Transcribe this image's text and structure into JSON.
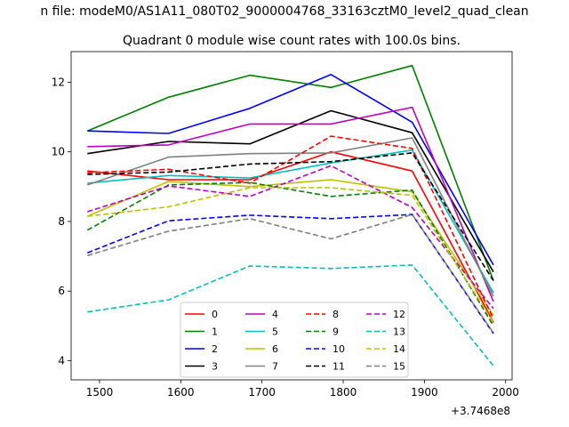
{
  "chart_data": {
    "type": "line",
    "suptitle": "n file: modeM0/AS1A11_080T02_9000004768_33163cztM0_level2_quad_clean",
    "title": "Quadrant 0 module wise count rates with 100.0s bins.",
    "xlabel": "",
    "ylabel": "",
    "x": [
      1485,
      1585,
      1685,
      1785,
      1885,
      1985
    ],
    "xlim": [
      1465,
      2008
    ],
    "ylim": [
      3.45,
      12.88
    ],
    "xticks": [
      1500,
      1600,
      1700,
      1800,
      1900,
      2000
    ],
    "xtick_labels": [
      "1500",
      "1600",
      "1700",
      "1800",
      "1900",
      "2000"
    ],
    "yticks": [
      4,
      6,
      8,
      10,
      12
    ],
    "ytick_labels": [
      "4",
      "6",
      "8",
      "10",
      "12"
    ],
    "offset_text": "+3.7468e8",
    "legend_position": "lower-center",
    "series": [
      {
        "name": "0",
        "color": "#ff0000",
        "dash": "solid",
        "values": [
          9.45,
          9.2,
          9.2,
          10.0,
          9.45,
          5.1
        ]
      },
      {
        "name": "1",
        "color": "#008000",
        "dash": "solid",
        "values": [
          10.6,
          11.57,
          12.2,
          11.85,
          12.48,
          6.3
        ]
      },
      {
        "name": "2",
        "color": "#0000ff",
        "dash": "solid",
        "values": [
          10.6,
          10.53,
          11.25,
          12.22,
          10.85,
          6.75
        ]
      },
      {
        "name": "3",
        "color": "#000000",
        "dash": "solid",
        "values": [
          9.95,
          10.3,
          10.23,
          11.18,
          10.55,
          6.55
        ]
      },
      {
        "name": "4",
        "color": "#bf00bf",
        "dash": "solid",
        "values": [
          10.15,
          10.2,
          10.8,
          10.8,
          11.28,
          5.7
        ]
      },
      {
        "name": "5",
        "color": "#00bfbf",
        "dash": "solid",
        "values": [
          9.1,
          9.32,
          9.25,
          9.68,
          10.05,
          5.95
        ]
      },
      {
        "name": "6",
        "color": "#bfbf00",
        "dash": "solid",
        "values": [
          8.15,
          9.15,
          9.0,
          9.2,
          8.85,
          5.3
        ]
      },
      {
        "name": "7",
        "color": "#808080",
        "dash": "solid",
        "values": [
          9.05,
          9.85,
          9.95,
          9.97,
          10.4,
          5.85
        ]
      },
      {
        "name": "8",
        "color": "#ff0000",
        "dash": "dashed",
        "values": [
          9.4,
          9.5,
          9.1,
          10.45,
          10.1,
          5.2
        ]
      },
      {
        "name": "9",
        "color": "#008000",
        "dash": "dashed",
        "values": [
          7.75,
          9.05,
          9.12,
          8.72,
          8.9,
          5.0
        ]
      },
      {
        "name": "10",
        "color": "#0000ff",
        "dash": "dashed",
        "values": [
          7.1,
          8.02,
          8.18,
          8.08,
          8.2,
          4.78
        ]
      },
      {
        "name": "11",
        "color": "#000000",
        "dash": "dashed",
        "values": [
          9.35,
          9.42,
          9.65,
          9.72,
          9.97,
          6.3
        ]
      },
      {
        "name": "12",
        "color": "#bf00bf",
        "dash": "dashed",
        "values": [
          8.28,
          9.02,
          8.72,
          9.6,
          8.4,
          5.5
        ]
      },
      {
        "name": "13",
        "color": "#00bfbf",
        "dash": "dashed",
        "values": [
          5.4,
          5.75,
          6.72,
          6.65,
          6.75,
          3.85
        ]
      },
      {
        "name": "14",
        "color": "#bfbf00",
        "dash": "dashed",
        "values": [
          8.15,
          8.42,
          8.97,
          8.97,
          8.75,
          5.1
        ]
      },
      {
        "name": "15",
        "color": "#808080",
        "dash": "dashed",
        "values": [
          7.02,
          7.72,
          8.08,
          7.5,
          8.2,
          4.8
        ]
      }
    ]
  }
}
